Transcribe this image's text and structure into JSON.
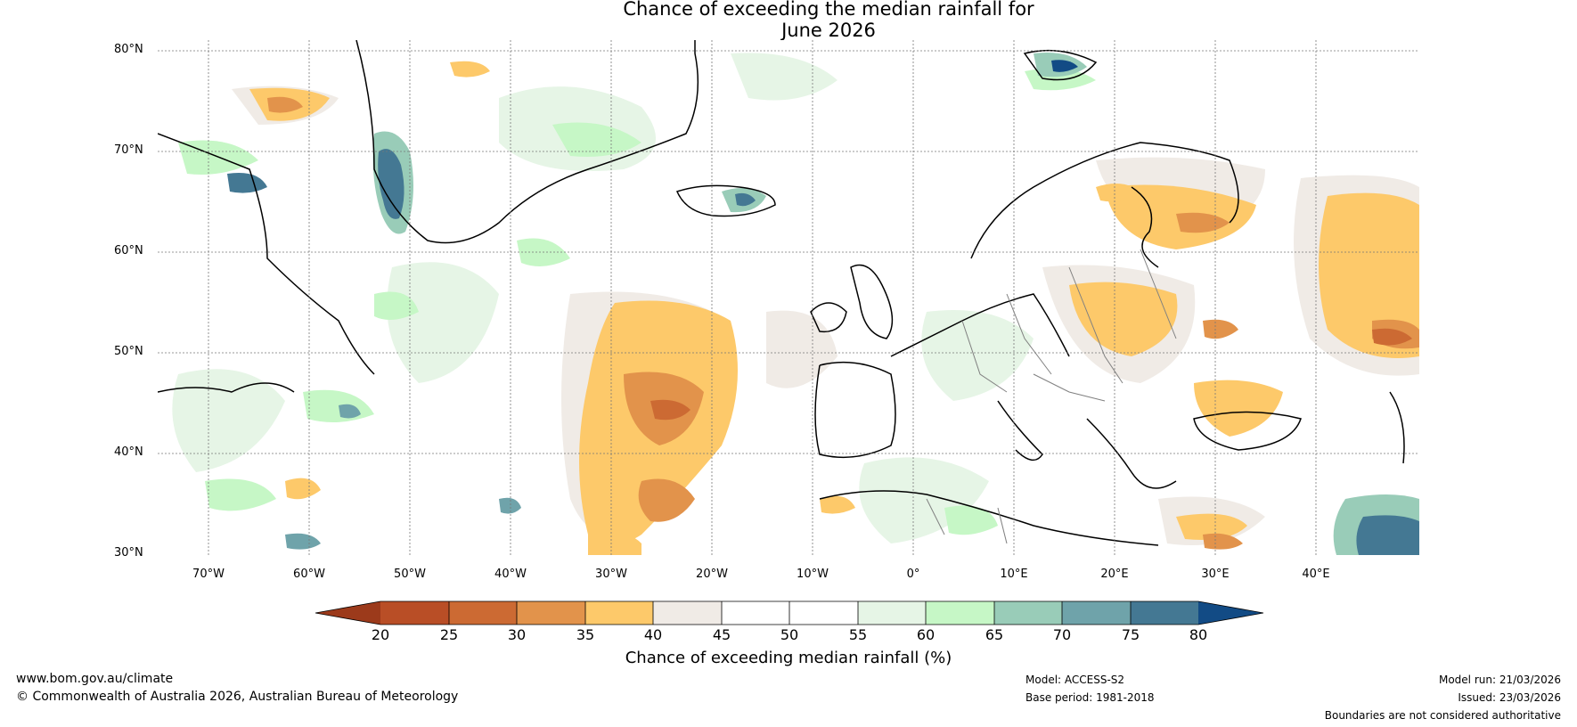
{
  "title": {
    "line1": "Chance of exceeding the median rainfall for",
    "line2": "June 2026"
  },
  "map": {
    "region": "North Atlantic and Europe",
    "lat_labels": [
      "80°N",
      "70°N",
      "60°N",
      "50°N",
      "40°N",
      "30°N"
    ],
    "lon_labels": [
      "70°W",
      "60°W",
      "50°W",
      "40°W",
      "30°W",
      "20°W",
      "10°W",
      "0°",
      "10°E",
      "20°E",
      "30°E",
      "40°E"
    ],
    "colors": {
      "below_20": "#9c3a1b",
      "c20_25": "#b94e26",
      "c25_30": "#cc6a33",
      "c30_35": "#e2934b",
      "c35_40": "#fdc96a",
      "c40_45": "#f0ebe6",
      "c45_50": "#ffffff",
      "c50_55": "#ffffff",
      "c55_60": "#e6f5e6",
      "c60_65": "#c6f7c6",
      "c65_70": "#99ccb8",
      "c70_75": "#6fa3aa",
      "c75_80": "#447893",
      "above_80": "#124b85",
      "coastline": "#000000",
      "borders": "#808080"
    }
  },
  "colorbar": {
    "ticks": [
      "20",
      "25",
      "30",
      "35",
      "40",
      "45",
      "50",
      "55",
      "60",
      "65",
      "70",
      "75",
      "80"
    ],
    "label": "Chance of exceeding median rainfall (%)"
  },
  "footer": {
    "website": "www.bom.gov.au/climate",
    "copyright": "© Commonwealth of Australia 2026, Australian Bureau of Meteorology",
    "model": "Model: ACCESS-S2",
    "base_period": "Base period: 1981-2018",
    "model_run": "Model run: 21/03/2026",
    "issued": "Issued: 23/03/2026",
    "disclaimer": "Boundaries are not considered authoritative"
  }
}
